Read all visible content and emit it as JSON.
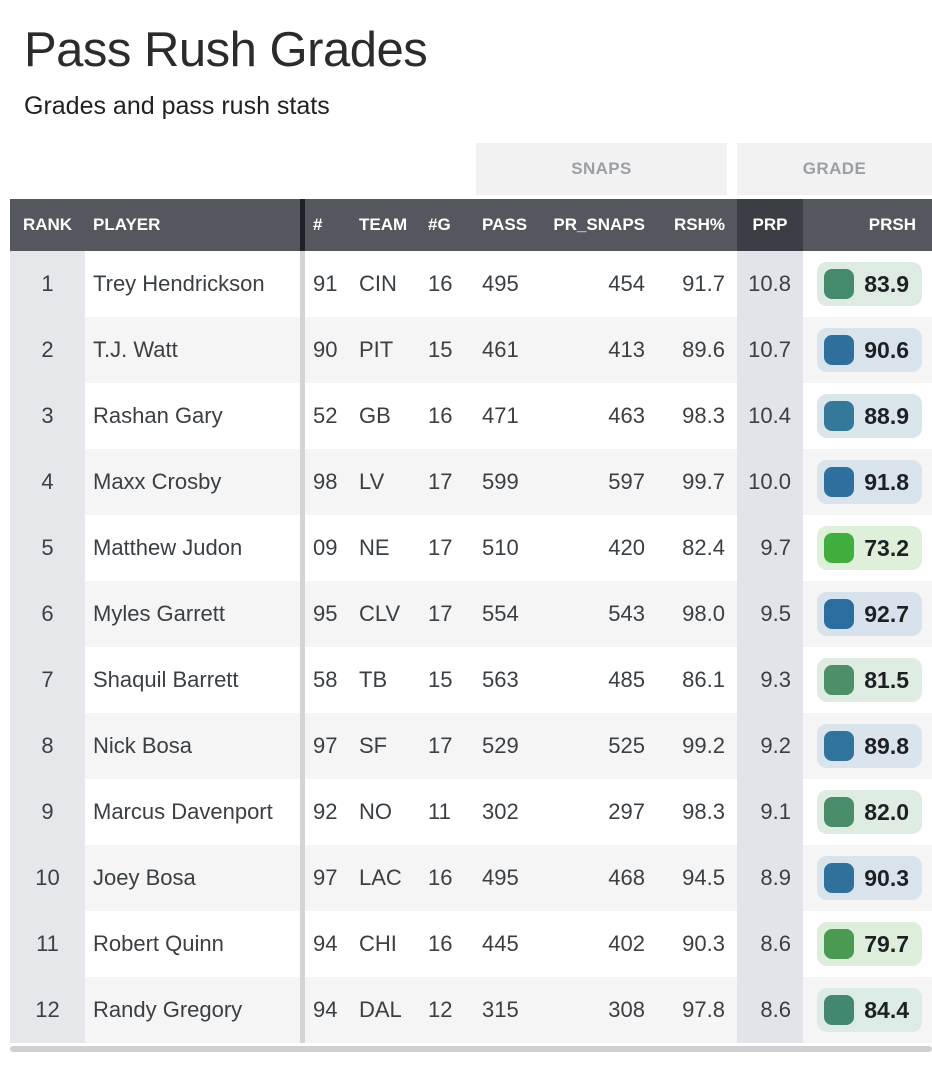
{
  "header": {
    "title": "Pass Rush Grades",
    "subtitle": "Grades and pass rush stats"
  },
  "table": {
    "groups": {
      "snaps": "SNAPS",
      "grade": "GRADE"
    },
    "columns": [
      {
        "key": "rank",
        "label": "RANK"
      },
      {
        "key": "player",
        "label": "PLAYER"
      },
      {
        "key": "num",
        "label": "#"
      },
      {
        "key": "team",
        "label": "TEAM"
      },
      {
        "key": "games",
        "label": "#G"
      },
      {
        "key": "pass",
        "label": "PASS"
      },
      {
        "key": "pr_snaps",
        "label": "PR_SNAPS"
      },
      {
        "key": "rsh_pct",
        "label": "RSH%"
      },
      {
        "key": "prp",
        "label": "PRP"
      },
      {
        "key": "prsh",
        "label": "PRSH"
      }
    ],
    "sorted_column": "PRP",
    "rows": [
      {
        "rank": "1",
        "player": "Trey Hendrickson",
        "num": "91",
        "team": "CIN",
        "games": "16",
        "pass": "495",
        "pr_snaps": "454",
        "rsh_pct": "91.7",
        "prp": "10.8",
        "prsh": "83.9",
        "chip_color": "#468a6e",
        "badge_bg": "#ddebe3"
      },
      {
        "rank": "2",
        "player": "T.J. Watt",
        "num": "90",
        "team": "PIT",
        "games": "15",
        "pass": "461",
        "pr_snaps": "413",
        "rsh_pct": "89.6",
        "prp": "10.7",
        "prsh": "90.6",
        "chip_color": "#2f6f9c",
        "badge_bg": "#d8e3ec"
      },
      {
        "rank": "3",
        "player": "Rashan Gary",
        "num": "52",
        "team": "GB",
        "games": "16",
        "pass": "471",
        "pr_snaps": "463",
        "rsh_pct": "98.3",
        "prp": "10.4",
        "prsh": "88.9",
        "chip_color": "#35799a",
        "badge_bg": "#dae6ec"
      },
      {
        "rank": "4",
        "player": "Maxx Crosby",
        "num": "98",
        "team": "LV",
        "games": "17",
        "pass": "599",
        "pr_snaps": "597",
        "rsh_pct": "99.7",
        "prp": "10.0",
        "prsh": "91.8",
        "chip_color": "#2e6f9e",
        "badge_bg": "#d8e3ec"
      },
      {
        "rank": "5",
        "player": "Matthew Judon",
        "num": "09",
        "team": "NE",
        "games": "17",
        "pass": "510",
        "pr_snaps": "420",
        "rsh_pct": "82.4",
        "prp": "9.7",
        "prsh": "73.2",
        "chip_color": "#3fae3d",
        "badge_bg": "#def0da"
      },
      {
        "rank": "6",
        "player": "Myles Garrett",
        "num": "95",
        "team": "CLV",
        "games": "17",
        "pass": "554",
        "pr_snaps": "543",
        "rsh_pct": "98.0",
        "prp": "9.5",
        "prsh": "92.7",
        "chip_color": "#2c6da0",
        "badge_bg": "#d7e2ec"
      },
      {
        "rank": "7",
        "player": "Shaquil Barrett",
        "num": "58",
        "team": "TB",
        "games": "15",
        "pass": "563",
        "pr_snaps": "485",
        "rsh_pct": "86.1",
        "prp": "9.3",
        "prsh": "81.5",
        "chip_color": "#4c8f68",
        "badge_bg": "#dfece2"
      },
      {
        "rank": "8",
        "player": "Nick Bosa",
        "num": "97",
        "team": "SF",
        "games": "17",
        "pass": "529",
        "pr_snaps": "525",
        "rsh_pct": "99.2",
        "prp": "9.2",
        "prsh": "89.8",
        "chip_color": "#31749b",
        "badge_bg": "#d9e4ec"
      },
      {
        "rank": "9",
        "player": "Marcus Davenport",
        "num": "92",
        "team": "NO",
        "games": "11",
        "pass": "302",
        "pr_snaps": "297",
        "rsh_pct": "98.3",
        "prp": "9.1",
        "prsh": "82.0",
        "chip_color": "#4a8d6a",
        "badge_bg": "#deece2"
      },
      {
        "rank": "10",
        "player": "Joey Bosa",
        "num": "97",
        "team": "LAC",
        "games": "16",
        "pass": "495",
        "pr_snaps": "468",
        "rsh_pct": "94.5",
        "prp": "8.9",
        "prsh": "90.3",
        "chip_color": "#30719c",
        "badge_bg": "#d8e3ec"
      },
      {
        "rank": "11",
        "player": "Robert Quinn",
        "num": "94",
        "team": "CHI",
        "games": "16",
        "pass": "445",
        "pr_snaps": "402",
        "rsh_pct": "90.3",
        "prp": "8.6",
        "prsh": "79.7",
        "chip_color": "#4a9a53",
        "badge_bg": "#ddeeda"
      },
      {
        "rank": "12",
        "player": "Randy Gregory",
        "num": "94",
        "team": "DAL",
        "games": "12",
        "pass": "315",
        "pr_snaps": "308",
        "rsh_pct": "97.8",
        "prp": "8.6",
        "prsh": "84.4",
        "chip_color": "#42876f",
        "badge_bg": "#dcebe4"
      }
    ]
  },
  "colors": {
    "header_bg": "#54585e",
    "sorted_header_bg": "#3b3f45",
    "group_header_bg": "#f2f2f3",
    "rank_column_bg": "#e6e7ea",
    "prp_column_bg": "#e2e4e9",
    "row_stripe_bg": "#f5f5f5"
  }
}
